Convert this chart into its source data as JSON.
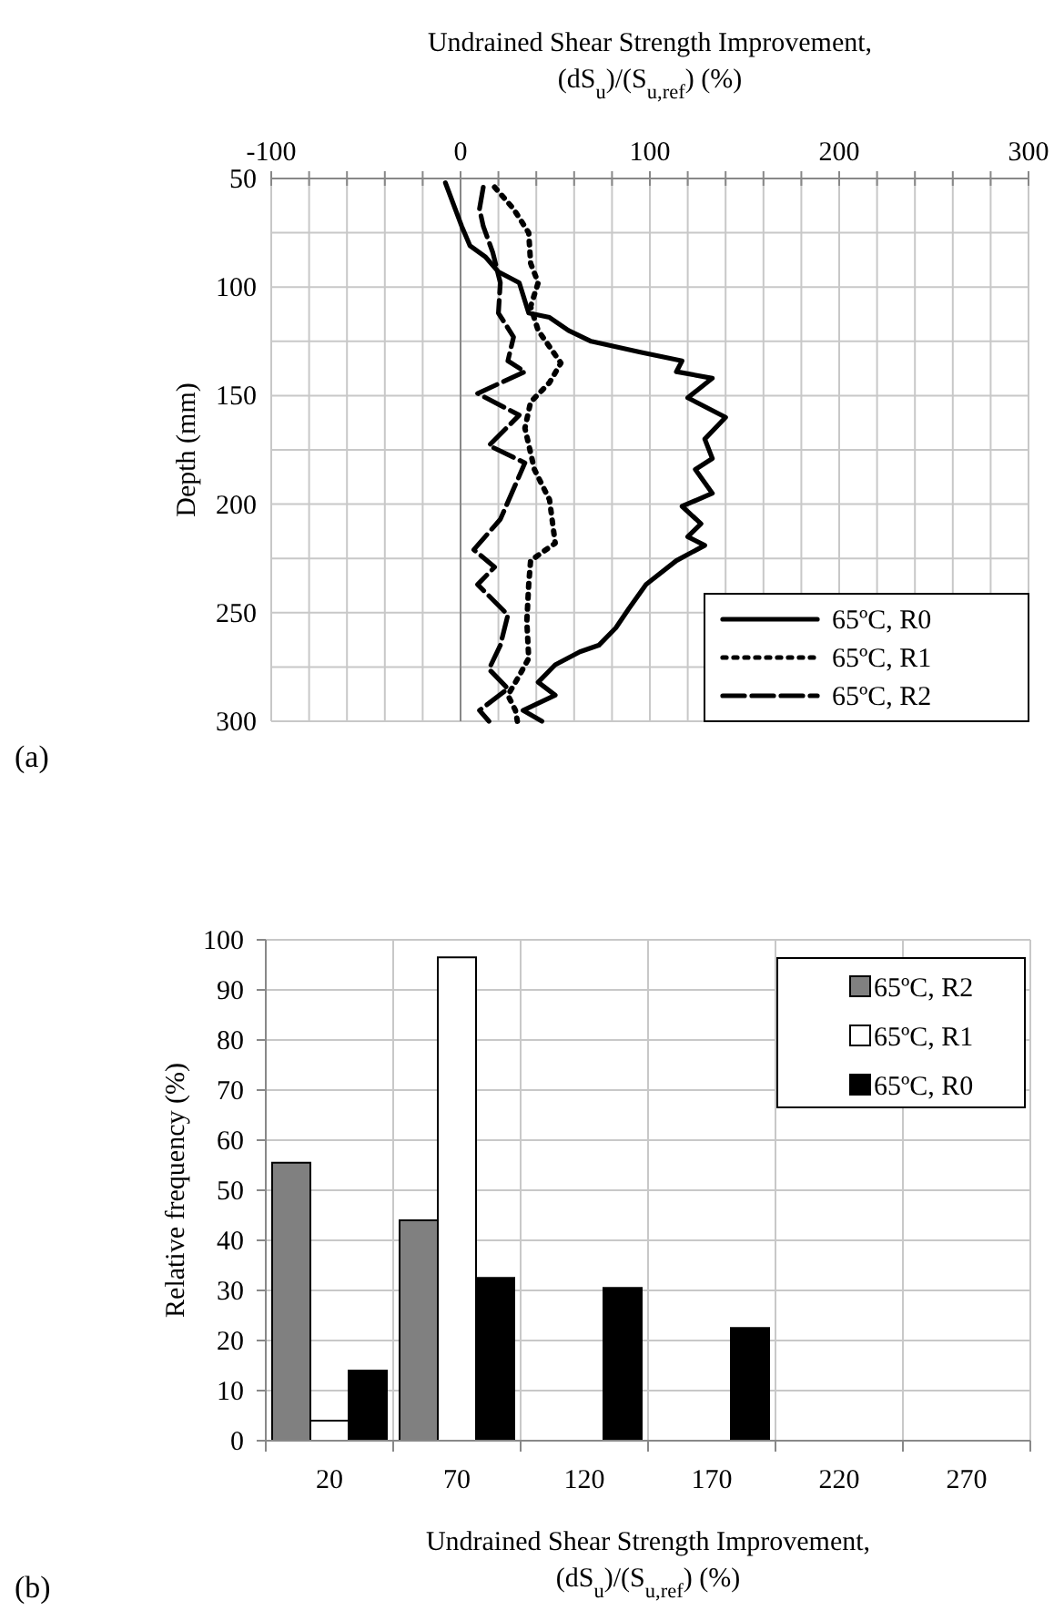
{
  "chart_data": [
    {
      "type": "line",
      "xlabel": "Undrained Shear Strength Improvement, (dS$_{u}$)/(S$_{u,ref}$) (%)",
      "ylabel": "Depth (mm)",
      "xlim": [
        -100,
        300
      ],
      "xticks": [
        -100,
        0,
        100,
        200,
        300
      ],
      "ylim": [
        300,
        50
      ],
      "yticks": [
        50,
        100,
        150,
        200,
        250,
        300
      ],
      "grid": true,
      "legend": "bottom right",
      "annotations": [
        "(a)"
      ],
      "series": [
        {
          "name": "65ºC, R0",
          "color": "#000000",
          "line_style": "solid",
          "x": [
            -8,
            0.6,
            5,
            13,
            20,
            31,
            36,
            47,
            57,
            69,
            95,
            117,
            114,
            133,
            120,
            140,
            129,
            133,
            124,
            133,
            117,
            127,
            120,
            129,
            114,
            98,
            89,
            82,
            73,
            63,
            50,
            41,
            50,
            33,
            43
          ],
          "values": [
            52,
            72,
            81,
            86,
            93,
            98,
            112,
            114,
            120,
            125,
            130,
            134,
            139,
            142,
            151,
            160,
            170,
            179,
            184,
            195,
            201,
            209,
            215,
            219,
            226,
            237,
            248,
            257,
            265,
            268,
            274,
            282,
            288,
            295,
            300
          ]
        },
        {
          "name": "65ºC, R1",
          "color": "#000000",
          "line_style": "dotted",
          "x": [
            18,
            28,
            36,
            37,
            41,
            37,
            41,
            53,
            47,
            37,
            34,
            39,
            47,
            50,
            37,
            36,
            35,
            36,
            31,
            25,
            29,
            30
          ],
          "values": [
            54,
            64,
            75,
            89,
            98,
            109,
            120,
            135,
            144,
            153,
            165,
            184,
            198,
            218,
            226,
            237,
            254,
            271,
            279,
            288,
            295,
            300
          ]
        },
        {
          "name": "65ºC, R2",
          "color": "#000000",
          "line_style": "dashed",
          "x": [
            12,
            10,
            12,
            17,
            21,
            20,
            28,
            25,
            34,
            9,
            31,
            15,
            34,
            28,
            21,
            7,
            18,
            9,
            25,
            21,
            15,
            25,
            10,
            15
          ],
          "values": [
            54,
            64,
            72,
            84,
            98,
            112,
            123,
            134,
            139,
            149,
            159,
            173,
            181,
            193,
            207,
            221,
            229,
            237,
            251,
            265,
            276,
            285,
            295,
            300
          ]
        }
      ]
    },
    {
      "type": "bar",
      "xlabel": "Undrained Shear Strength Improvement, (dS$_{u}$)/(S$_{u,ref}$) (%)",
      "ylabel": "Relative frequency (%)",
      "categories": [
        "20",
        "70",
        "120",
        "170",
        "220",
        "270"
      ],
      "ylim": [
        0,
        100
      ],
      "yticks": [
        0,
        10,
        20,
        30,
        40,
        50,
        60,
        70,
        80,
        90,
        100
      ],
      "grid": true,
      "legend": "top right",
      "annotations": [
        "(b)"
      ],
      "series": [
        {
          "name": "65ºC, R2",
          "color": "#808080",
          "values": [
            55.5,
            44,
            0,
            0,
            0,
            0
          ]
        },
        {
          "name": "65ºC, R1",
          "color": "#ffffff",
          "values": [
            4,
            96.5,
            0,
            0,
            0,
            0
          ]
        },
        {
          "name": "65ºC, R0",
          "color": "#000000",
          "values": [
            14,
            32.5,
            30.5,
            22.5,
            0,
            0
          ]
        }
      ]
    }
  ]
}
